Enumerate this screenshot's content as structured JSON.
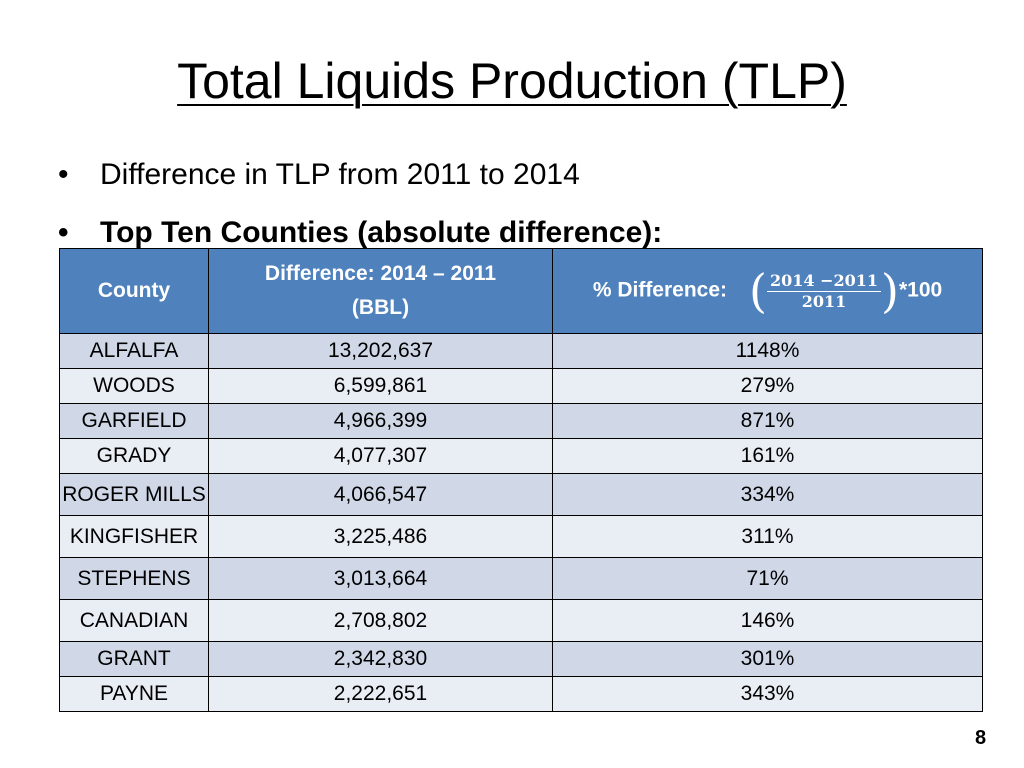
{
  "slide": {
    "title": "Total Liquids Production (TLP)",
    "bullets": [
      "Difference in TLP from 2011 to 2014",
      "Top Ten Counties (absolute difference):"
    ],
    "page_number": "8"
  },
  "table": {
    "headers": {
      "county": "County",
      "difference_line1": "Difference: 2014 – 2011",
      "difference_line2": "(BBL)",
      "pct_label": "% Difference:",
      "pct_numerator": "2014 −2011",
      "pct_denominator": "2011",
      "pct_suffix": "*100"
    },
    "rows": [
      {
        "county": "ALFALFA",
        "difference": "13,202,637",
        "pct": "1148%"
      },
      {
        "county": "WOODS",
        "difference": "6,599,861",
        "pct": "279%"
      },
      {
        "county": "GARFIELD",
        "difference": "4,966,399",
        "pct": "871%"
      },
      {
        "county": "GRADY",
        "difference": "4,077,307",
        "pct": "161%"
      },
      {
        "county": "ROGER MILLS",
        "difference": "4,066,547",
        "pct": "334%"
      },
      {
        "county": "KINGFISHER",
        "difference": "3,225,486",
        "pct": "311%"
      },
      {
        "county": "STEPHENS",
        "difference": "3,013,664",
        "pct": "71%"
      },
      {
        "county": "CANADIAN",
        "difference": "2,708,802",
        "pct": "146%"
      },
      {
        "county": "GRANT",
        "difference": "2,342,830",
        "pct": "301%"
      },
      {
        "county": "PAYNE",
        "difference": "2,222,651",
        "pct": "343%"
      }
    ]
  },
  "colors": {
    "header_background": "#4f81bd",
    "row_band_dark": "#d0d8e8",
    "row_band_light": "#e9edf4"
  }
}
